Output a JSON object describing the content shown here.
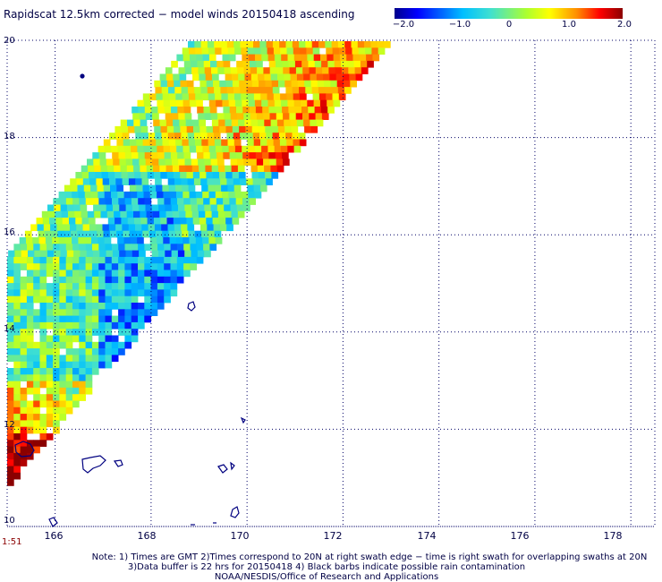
{
  "title": "Rapidscat 12.5km corrected − model winds 20150418 ascending",
  "colorbar": {
    "labels": [
      "−2.0",
      "−1.0",
      "0",
      "1.0",
      "2.0"
    ],
    "range": [
      -2.0,
      2.0
    ]
  },
  "axes": {
    "lat_ticks": [
      "20",
      "18",
      "16",
      "14",
      "12",
      "10"
    ],
    "lon_ticks": [
      "166",
      "168",
      "170",
      "172",
      "174",
      "176",
      "178"
    ],
    "lat_range": [
      10,
      20
    ],
    "lon_range": [
      165,
      178.5
    ]
  },
  "time_label": "1:51",
  "notes": [
    "Note: 1) Times are GMT 2)Times correspond to 20N at right swath edge − time is right swath for overlapping swaths at 20N",
    "3)Data buffer is 22 hrs for 20150418 4) Black barbs indicate possible rain contamination",
    "NOAA/NESDIS/Office of Research and Applications"
  ],
  "colors": {
    "scale": [
      "#00008b",
      "#0000ff",
      "#00bfff",
      "#40e0d0",
      "#ffff00",
      "#ff8c00",
      "#ff0000",
      "#8b0000"
    ],
    "grid": "#000066",
    "coastline": "#000080"
  }
}
